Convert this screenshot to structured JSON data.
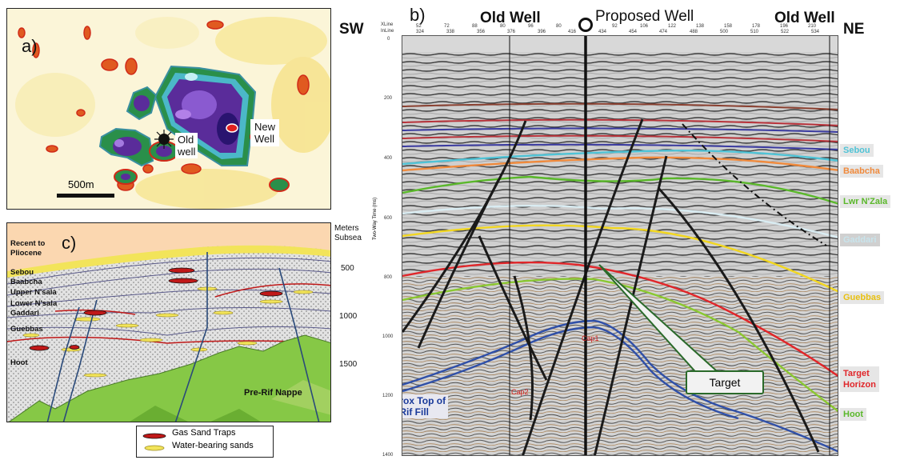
{
  "panel_a": {
    "label": "a)",
    "old_well": "Old\nwell",
    "new_well": "New\nWell",
    "scale": "500m"
  },
  "panel_b": {
    "label": "b)",
    "sw": "SW",
    "ne": "NE",
    "old_well_left": "Old Well",
    "proposed_well": "Proposed Well",
    "old_well_right": "Old Well",
    "xline_label": "XLine",
    "inline_label": "InLine",
    "x_ticks": [
      "52",
      "72",
      "88",
      "80",
      "96",
      "80",
      "80",
      "92",
      "106",
      "122",
      "138",
      "158",
      "178",
      "196",
      "210"
    ],
    "inline_ticks": [
      "324",
      "338",
      "356",
      "376",
      "396",
      "416",
      "434",
      "454",
      "474",
      "488",
      "500",
      "510",
      "522",
      "534"
    ],
    "y_axis_title": "Two-Way Time (ms)",
    "y_ticks": [
      "0",
      "200",
      "400",
      "600",
      "800",
      "1000",
      "1200",
      "1400"
    ],
    "horizons": [
      {
        "name": "Sebou",
        "color": "#4fc3d6"
      },
      {
        "name": "Baabcha",
        "color": "#f08a3c"
      },
      {
        "name": "Lwr N'Zala",
        "color": "#5ab82a"
      },
      {
        "name": "Gaddari",
        "color": "#d9ecf2"
      },
      {
        "name": "Guebbas",
        "color": "#f2d720"
      },
      {
        "name": "Target\nHorizon",
        "color": "#e0262a"
      },
      {
        "name": "Hoot",
        "color": "#5ab82a"
      }
    ],
    "target": "Target",
    "prerif": "Approx Top of\nPre-Rif Fill",
    "cap_label": "Cap1",
    "cap_label2": "Cap2"
  },
  "panel_c": {
    "label": "c)",
    "depth_title": "Meters\nSubsea",
    "depths": [
      "500",
      "1000",
      "1500"
    ],
    "formations": [
      "Recent to\nPliocene",
      "Sebou",
      "Baabcha",
      "Upper N'sala",
      "Lower N'sala",
      "Gaddari",
      "Guebbas",
      "Hoot"
    ],
    "nappe": "Pre-Rif Nappe"
  },
  "legend": {
    "gas": "Gas Sand Traps",
    "water": "Water-bearing sands"
  }
}
